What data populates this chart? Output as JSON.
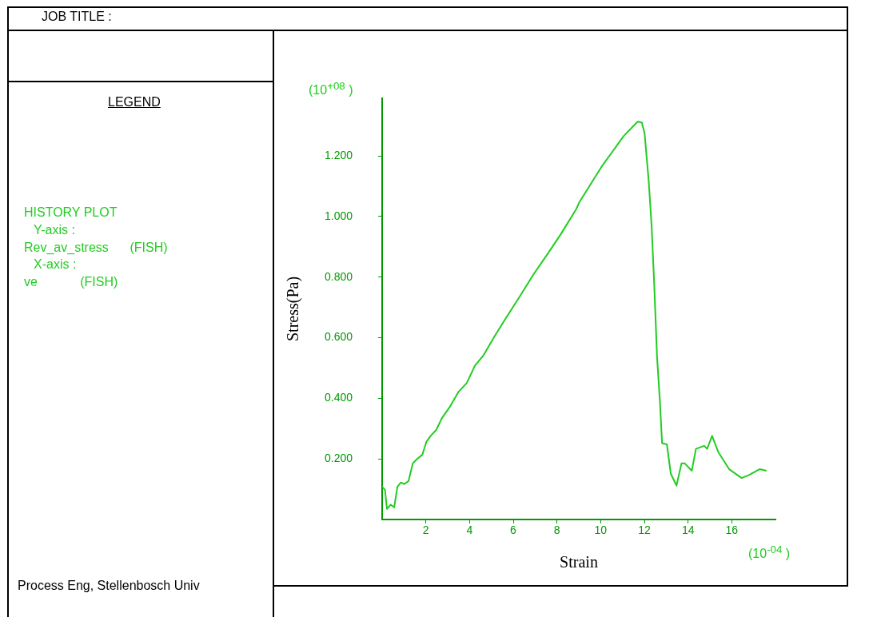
{
  "chart_data": {
    "type": "line",
    "xlabel": "Strain",
    "ylabel": "Stress(Pa)",
    "x": [
      0.0,
      0.13,
      0.22,
      0.39,
      0.55,
      0.7,
      0.85,
      1.01,
      1.21,
      1.4,
      1.59,
      1.84,
      2.03,
      2.22,
      2.48,
      2.73,
      3.11,
      3.49,
      3.87,
      4.25,
      4.63,
      5.14,
      5.64,
      6.28,
      6.91,
      7.55,
      8.18,
      8.88,
      9.03,
      10.04,
      11.05,
      11.69,
      11.88,
      12.01,
      12.2,
      12.33,
      12.45,
      12.58,
      12.71,
      12.81,
      13.03,
      13.21,
      13.47,
      13.7,
      13.85,
      14.17,
      14.36,
      14.74,
      14.87,
      15.1,
      15.38,
      15.88,
      16.45,
      16.77,
      17.27,
      17.59
    ],
    "series": [
      {
        "color": "#22cc22",
        "values": [
          0.108,
          0.098,
          0.035,
          0.049,
          0.04,
          0.108,
          0.122,
          0.117,
          0.127,
          0.185,
          0.199,
          0.214,
          0.257,
          0.276,
          0.296,
          0.334,
          0.373,
          0.421,
          0.45,
          0.508,
          0.541,
          0.604,
          0.662,
          0.734,
          0.807,
          0.874,
          0.942,
          1.024,
          1.048,
          1.164,
          1.265,
          1.313,
          1.31,
          1.275,
          1.116,
          0.971,
          0.778,
          0.537,
          0.392,
          0.252,
          0.248,
          0.151,
          0.112,
          0.185,
          0.185,
          0.161,
          0.233,
          0.243,
          0.233,
          0.276,
          0.223,
          0.166,
          0.137,
          0.146,
          0.166,
          0.161
        ]
      }
    ],
    "xlim": [
      0,
      18
    ],
    "xticks": [
      2,
      4,
      6,
      8,
      10,
      12,
      14,
      16
    ],
    "ylim": [
      0,
      1.39
    ],
    "yticks": [
      {
        "value": 0.2,
        "label": "0.200"
      },
      {
        "value": 0.4,
        "label": "0.400"
      },
      {
        "value": 0.6,
        "label": "0.600"
      },
      {
        "value": 0.8,
        "label": "0.800"
      },
      {
        "value": 1.0,
        "label": "1.000"
      },
      {
        "value": 1.2,
        "label": "1.200"
      }
    ],
    "grid": false,
    "legend": false,
    "marker": "none",
    "line_style": "solid",
    "annotations": [
      "JOB TITLE :",
      "LEGEND",
      "HISTORY PLOT",
      "Y-axis :",
      "Rev_av_stress      (FISH)",
      "X-axis :",
      "ve            (FISH)",
      "Process Eng, Stellenbosch Univ",
      "(10$^{+08}$ )",
      "(10$^{-04}$ )"
    ]
  }
}
